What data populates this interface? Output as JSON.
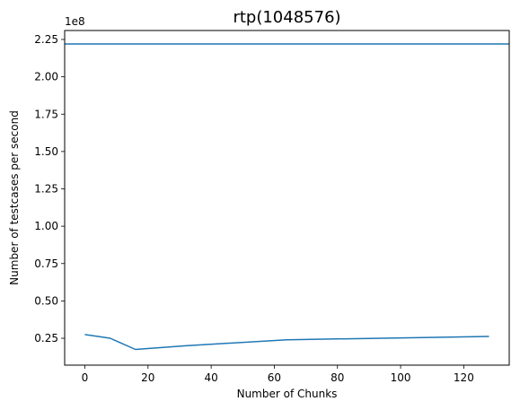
{
  "chart_data": {
    "type": "line",
    "title": "rtp(1048576)",
    "xlabel": "Number of Chunks",
    "ylabel": "Number of testcases per second",
    "y_offset_label": "1e8",
    "xlim": [
      -6.4,
      134.4
    ],
    "ylim": [
      0.07,
      2.31
    ],
    "x_ticks": [
      0,
      20,
      40,
      60,
      80,
      100,
      120
    ],
    "x_tick_labels": [
      "0",
      "20",
      "40",
      "60",
      "80",
      "100",
      "120"
    ],
    "y_ticks": [
      0.25,
      0.5,
      0.75,
      1.0,
      1.25,
      1.5,
      1.75,
      2.0,
      2.25
    ],
    "y_tick_labels": [
      "0.25",
      "0.50",
      "0.75",
      "1.00",
      "1.25",
      "1.50",
      "1.75",
      "2.00",
      "2.25"
    ],
    "grid": false,
    "color": "#1f77b4",
    "horizontal_line": {
      "y": 2.22
    },
    "series": [
      {
        "x": [
          0,
          8,
          16,
          32,
          64,
          128
        ],
        "y": [
          0.275,
          0.25,
          0.175,
          0.2,
          0.24,
          0.262
        ]
      }
    ]
  }
}
